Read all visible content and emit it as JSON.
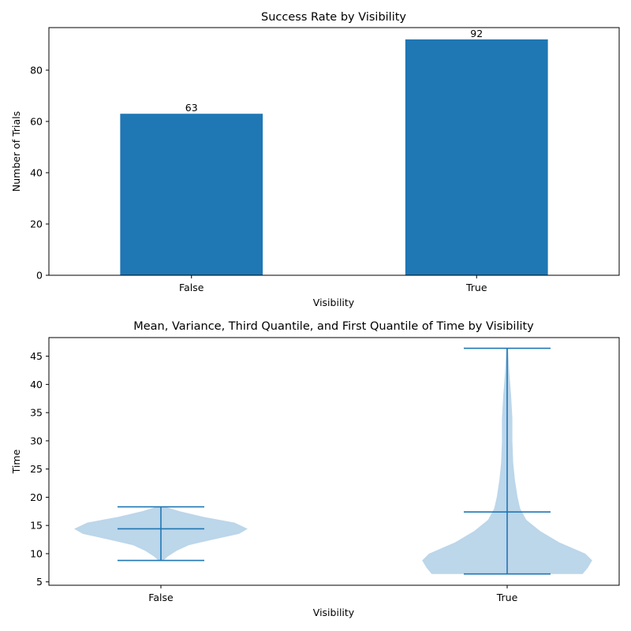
{
  "chart_data": [
    {
      "type": "bar",
      "title": "Success Rate by Visibility",
      "xlabel": "Visibility",
      "ylabel": "Number of Trials",
      "categories": [
        "False",
        "True"
      ],
      "values": [
        63,
        92
      ],
      "data_labels": [
        "63",
        "92"
      ],
      "ylim": [
        0,
        96.6
      ],
      "yticks": [
        0,
        20,
        40,
        60,
        80
      ],
      "grid": false,
      "color": "#1f77b4"
    },
    {
      "type": "violin",
      "title": "Mean, Variance, Third Quantile, and First Quantile of Time by Visibility",
      "xlabel": "Visibility",
      "ylabel": "Time",
      "categories": [
        "False",
        "True"
      ],
      "ylim": [
        4.4,
        48.3
      ],
      "yticks": [
        5,
        10,
        15,
        20,
        25,
        30,
        35,
        40,
        45
      ],
      "grid": false,
      "body_color": "#bcd6ea",
      "line_color": "#1f77b4",
      "series": [
        {
          "min": 8.8,
          "max": 18.3,
          "median": 14.4,
          "density": [
            [
              8.8,
              0.03
            ],
            [
              9.5,
              0.08
            ],
            [
              10.5,
              0.18
            ],
            [
              11.5,
              0.32
            ],
            [
              12.5,
              0.6
            ],
            [
              13.5,
              0.9
            ],
            [
              14.4,
              1.0
            ],
            [
              15.5,
              0.85
            ],
            [
              16.5,
              0.5
            ],
            [
              17.5,
              0.22
            ],
            [
              18.3,
              0.05
            ]
          ]
        },
        {
          "min": 6.4,
          "max": 46.4,
          "median": 17.4,
          "density": [
            [
              6.4,
              0.87
            ],
            [
              7.5,
              0.93
            ],
            [
              8.8,
              0.98
            ],
            [
              10.0,
              0.9
            ],
            [
              12.0,
              0.6
            ],
            [
              14.0,
              0.38
            ],
            [
              16.0,
              0.22
            ],
            [
              18.0,
              0.15
            ],
            [
              20.0,
              0.12
            ],
            [
              23.0,
              0.09
            ],
            [
              26.0,
              0.07
            ],
            [
              30.0,
              0.06
            ],
            [
              34.0,
              0.06
            ],
            [
              38.0,
              0.045
            ],
            [
              42.0,
              0.025
            ],
            [
              46.4,
              0.01
            ]
          ]
        }
      ]
    }
  ]
}
